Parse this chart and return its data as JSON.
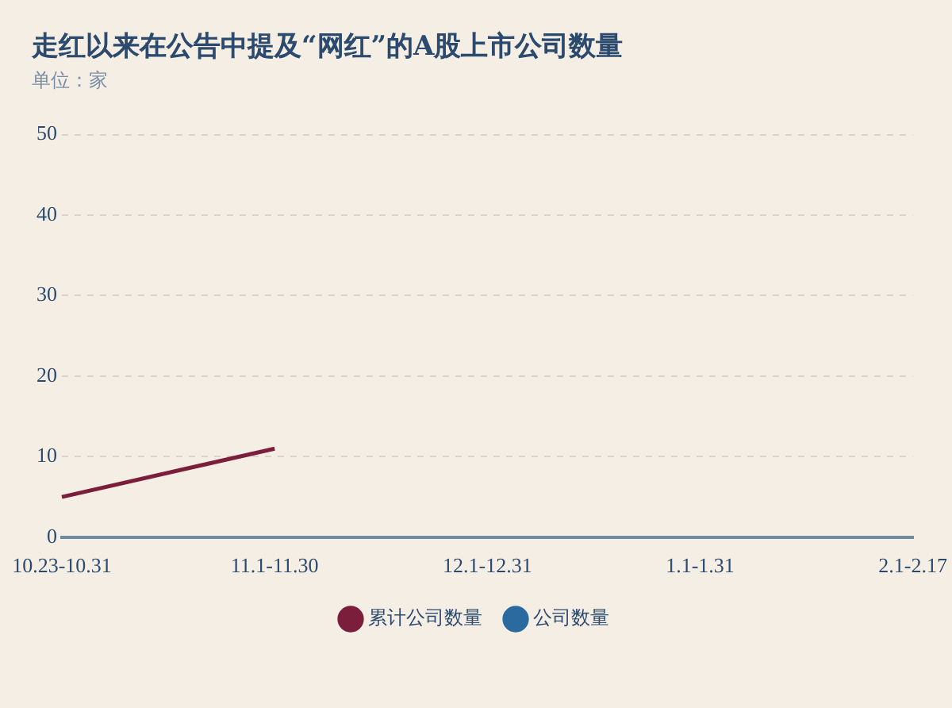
{
  "chart_data": {
    "type": "line",
    "title": "走红以来在公告中提及“网红”的A股上市公司数量",
    "subtitle": "单位：家",
    "categories": [
      "10.23-10.31",
      "11.1-11.30",
      "12.1-12.31",
      "1.1-1.31",
      "2.1-2.17"
    ],
    "series": [
      {
        "name": "累计公司数量",
        "color": "#7b1e3c",
        "values": [
          5,
          11,
          null,
          null,
          null
        ]
      },
      {
        "name": "公司数量",
        "color": "#2a6a9e",
        "values": [
          null,
          null,
          null,
          null,
          null
        ]
      }
    ],
    "ylim": [
      0,
      50
    ],
    "yticks": [
      0,
      10,
      20,
      30,
      40,
      50
    ],
    "grid": "y",
    "legend": "bottom",
    "marker": "none",
    "line_style": "solid"
  }
}
